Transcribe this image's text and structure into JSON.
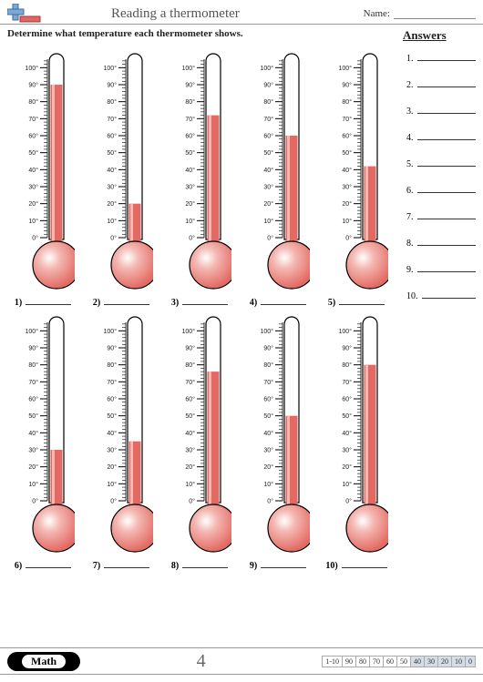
{
  "header": {
    "title": "Reading a thermometer",
    "name_label": "Name:"
  },
  "instruction": "Determine what temperature each thermometer shows.",
  "answers_heading": "Answers",
  "thermometers": {
    "scale_min": 0,
    "scale_max": 105,
    "major_ticks": [
      0,
      10,
      20,
      30,
      40,
      50,
      60,
      70,
      80,
      90,
      100
    ],
    "tick_labels": [
      "0°",
      "10°",
      "20°",
      "30°",
      "40°",
      "50°",
      "60°",
      "70°",
      "80°",
      "90°",
      "100°"
    ],
    "tube_fill": "#e36a63",
    "tube_fill_light": "#f4b8b3",
    "bulb_highlight": "#ffffff",
    "outline": "#000000",
    "items": [
      {
        "id": "1",
        "value": 90
      },
      {
        "id": "2",
        "value": 20
      },
      {
        "id": "3",
        "value": 72
      },
      {
        "id": "4",
        "value": 60
      },
      {
        "id": "5",
        "value": 42
      },
      {
        "id": "6",
        "value": 30
      },
      {
        "id": "7",
        "value": 35
      },
      {
        "id": "8",
        "value": 76
      },
      {
        "id": "9",
        "value": 50
      },
      {
        "id": "10",
        "value": 80
      }
    ]
  },
  "answers": {
    "count": 10
  },
  "footer": {
    "badge": "Math",
    "page_number": "4",
    "score_label": "1-10",
    "scores": [
      "90",
      "80",
      "70",
      "60",
      "50",
      "40",
      "30",
      "20",
      "10",
      "0"
    ],
    "shaded_from_index": 5
  },
  "colors": {
    "page_bg": "#ffffff",
    "text": "#222222",
    "rule": "#999999"
  }
}
